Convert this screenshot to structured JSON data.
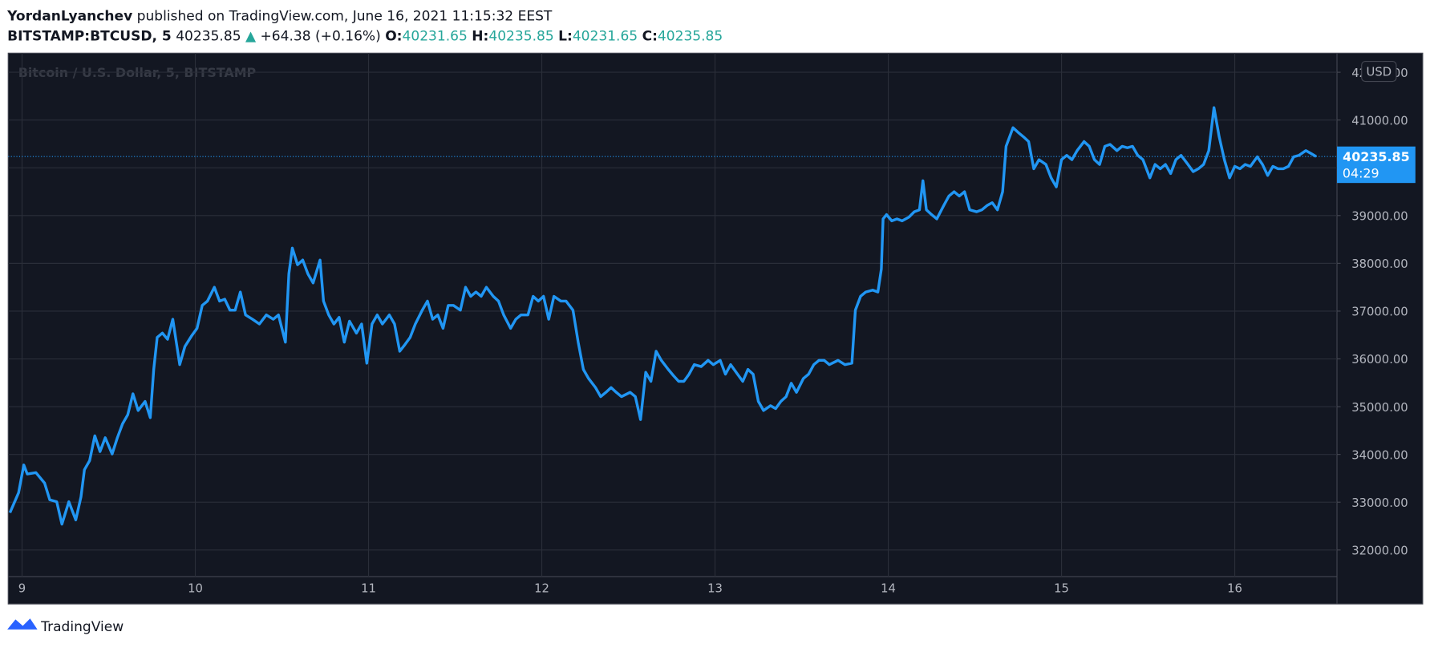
{
  "chart_data": {
    "type": "line",
    "author": "YordanLyanchev",
    "published": "published on TradingView.com, June 16, 2021 11:15:32 EEST",
    "symbol": "BITSTAMP:BTCUSD, 5",
    "last": 40235.85,
    "change": "+64.38 (+0.16%)",
    "ohlc": [
      {
        "label": "O:",
        "value": 40231.65
      },
      {
        "label": "H:",
        "value": 40235.85
      },
      {
        "label": "L:",
        "value": 40231.65
      },
      {
        "label": "C:",
        "value": 40235.85
      }
    ],
    "watermark": "Bitcoin / U.S. Dollar, 5, BITSTAMP",
    "currency": "USD",
    "countdown": "04:29",
    "brand": "TradingView",
    "color": "#2196f3",
    "grid": true,
    "xlim": [
      8.92,
      16.59
    ],
    "ylim": [
      30870,
      42400
    ],
    "xticks": [
      9,
      10,
      11,
      12,
      13,
      14,
      15,
      16
    ],
    "yticks": [
      {
        "value": 32000,
        "label": "32000.00"
      },
      {
        "value": 33000,
        "label": "33000.00"
      },
      {
        "value": 34000,
        "label": "34000.00"
      },
      {
        "value": 35000,
        "label": "35000.00"
      },
      {
        "value": 36000,
        "label": "36000.00"
      },
      {
        "value": 37000,
        "label": "37000.00"
      },
      {
        "value": 38000,
        "label": "38000.00"
      },
      {
        "value": 39000,
        "label": "39000.00"
      },
      {
        "value": 40000,
        "label": "40000.00"
      },
      {
        "value": 41000,
        "label": "41000.00"
      },
      {
        "value": 42000,
        "label": "42000.00"
      }
    ],
    "x": [
      8.93,
      8.98,
      9.01,
      9.03,
      9.08,
      9.13,
      9.16,
      9.2,
      9.23,
      9.27,
      9.31,
      9.34,
      9.36,
      9.39,
      9.42,
      9.45,
      9.48,
      9.52,
      9.55,
      9.58,
      9.61,
      9.64,
      9.67,
      9.71,
      9.74,
      9.76,
      9.78,
      9.81,
      9.84,
      9.87,
      9.91,
      9.94,
      9.98,
      10.01,
      10.04,
      10.07,
      10.11,
      10.14,
      10.17,
      10.2,
      10.23,
      10.26,
      10.29,
      10.33,
      10.37,
      10.41,
      10.45,
      10.48,
      10.52,
      10.54,
      10.56,
      10.59,
      10.62,
      10.65,
      10.68,
      10.72,
      10.74,
      10.77,
      10.8,
      10.83,
      10.86,
      10.89,
      10.93,
      10.96,
      10.99,
      11.02,
      11.05,
      11.08,
      11.12,
      11.15,
      11.18,
      11.21,
      11.24,
      11.27,
      11.31,
      11.34,
      11.37,
      11.4,
      11.43,
      11.46,
      11.49,
      11.53,
      11.56,
      11.59,
      11.62,
      11.65,
      11.68,
      11.72,
      11.75,
      11.78,
      11.82,
      11.85,
      11.88,
      11.92,
      11.95,
      11.98,
      12.01,
      12.04,
      12.07,
      12.11,
      12.14,
      12.18,
      12.21,
      12.24,
      12.27,
      12.31,
      12.34,
      12.37,
      12.4,
      12.43,
      12.46,
      12.51,
      12.54,
      12.57,
      12.6,
      12.63,
      12.66,
      12.69,
      12.73,
      12.76,
      12.79,
      12.82,
      12.85,
      12.88,
      12.92,
      12.96,
      12.99,
      13.03,
      13.06,
      13.09,
      13.13,
      13.16,
      13.19,
      13.22,
      13.25,
      13.28,
      13.32,
      13.35,
      13.38,
      13.41,
      13.44,
      13.47,
      13.51,
      13.54,
      13.57,
      13.6,
      13.63,
      13.66,
      13.71,
      13.75,
      13.79,
      13.81,
      13.84,
      13.87,
      13.91,
      13.94,
      13.96,
      13.97,
      13.99,
      14.02,
      14.05,
      14.08,
      14.12,
      14.15,
      14.18,
      14.2,
      14.22,
      14.25,
      14.28,
      14.32,
      14.35,
      14.38,
      14.41,
      14.44,
      14.47,
      14.51,
      14.54,
      14.57,
      14.6,
      14.63,
      14.66,
      14.68,
      14.72,
      14.75,
      14.78,
      14.81,
      14.84,
      14.87,
      14.91,
      14.94,
      14.97,
      15.0,
      15.03,
      15.06,
      15.09,
      15.13,
      15.16,
      15.19,
      15.22,
      15.25,
      15.28,
      15.32,
      15.35,
      15.38,
      15.41,
      15.44,
      15.47,
      15.51,
      15.54,
      15.57,
      15.6,
      15.63,
      15.66,
      15.69,
      15.73,
      15.76,
      15.79,
      15.82,
      15.85,
      15.88,
      15.91,
      15.94,
      15.97,
      16.0,
      16.03,
      16.06,
      16.09,
      16.13,
      16.16,
      16.19,
      16.22,
      16.25,
      16.28,
      16.31,
      16.34,
      16.37,
      16.41,
      16.44,
      16.47
    ],
    "values": [
      32780,
      33200,
      33780,
      33590,
      33620,
      33400,
      33050,
      33010,
      32540,
      33010,
      32630,
      33110,
      33680,
      33870,
      34390,
      34060,
      34350,
      34010,
      34350,
      34640,
      34830,
      35270,
      34920,
      35110,
      34770,
      35780,
      36450,
      36540,
      36410,
      36830,
      35880,
      36260,
      36490,
      36640,
      37120,
      37210,
      37500,
      37210,
      37250,
      37020,
      37020,
      37400,
      36920,
      36830,
      36730,
      36920,
      36830,
      36920,
      36350,
      37780,
      38320,
      37970,
      38070,
      37780,
      37590,
      38070,
      37210,
      36920,
      36730,
      36870,
      36350,
      36790,
      36540,
      36730,
      35910,
      36730,
      36920,
      36730,
      36920,
      36730,
      36160,
      36300,
      36450,
      36730,
      37020,
      37210,
      36830,
      36920,
      36640,
      37120,
      37120,
      37020,
      37500,
      37310,
      37400,
      37310,
      37500,
      37310,
      37210,
      36920,
      36640,
      36830,
      36920,
      36920,
      37310,
      37210,
      37310,
      36830,
      37310,
      37210,
      37210,
      37020,
      36350,
      35780,
      35590,
      35400,
      35210,
      35300,
      35400,
      35300,
      35210,
      35300,
      35210,
      34730,
      35720,
      35530,
      36160,
      35970,
      35780,
      35650,
      35530,
      35530,
      35680,
      35880,
      35840,
      35970,
      35880,
      35970,
      35680,
      35880,
      35680,
      35530,
      35780,
      35680,
      35110,
      34920,
      35020,
      34960,
      35110,
      35210,
      35490,
      35300,
      35590,
      35680,
      35880,
      35970,
      35970,
      35880,
      35970,
      35880,
      35910,
      37020,
      37310,
      37400,
      37440,
      37400,
      37880,
      38930,
      39020,
      38890,
      38930,
      38890,
      38970,
      39080,
      39120,
      39730,
      39120,
      39020,
      38930,
      39210,
      39410,
      39500,
      39410,
      39500,
      39120,
      39080,
      39120,
      39210,
      39270,
      39120,
      39500,
      40450,
      40840,
      40740,
      40650,
      40550,
      39980,
      40170,
      40070,
      39790,
      39600,
      40170,
      40260,
      40170,
      40360,
      40550,
      40450,
      40170,
      40070,
      40450,
      40490,
      40360,
      40450,
      40420,
      40450,
      40260,
      40170,
      39790,
      40070,
      39980,
      40070,
      39880,
      40170,
      40260,
      40070,
      39920,
      39980,
      40070,
      40360,
      41260,
      40650,
      40170,
      39790,
      40030,
      39980,
      40070,
      40030,
      40230,
      40070,
      39840,
      40030,
      39980,
      39980,
      40030,
      40230,
      40260,
      40360,
      40300,
      40235.85
    ]
  }
}
